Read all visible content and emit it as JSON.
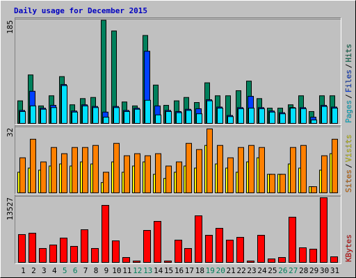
{
  "chart_data": [
    {
      "type": "bar",
      "title": "Daily usage for December 2015",
      "legend_separator": "/",
      "ylim": [
        0,
        185
      ],
      "yticks": [
        185
      ],
      "series": [
        {
          "name": "Hits",
          "color": "#00805c",
          "values": [
            40,
            86,
            31,
            49,
            83,
            33,
            44,
            46,
            183,
            164,
            38,
            31,
            156,
            68,
            32,
            40,
            46,
            37,
            72,
            49,
            49,
            58,
            75,
            44,
            27,
            27,
            33,
            49,
            21,
            49,
            49
          ]
        },
        {
          "name": "Files",
          "color": "#0040ff",
          "values": [
            23,
            57,
            27,
            32,
            69,
            22,
            33,
            30,
            20,
            30,
            23,
            27,
            128,
            31,
            23,
            21,
            25,
            26,
            42,
            29,
            14,
            28,
            48,
            28,
            22,
            19,
            28,
            28,
            11,
            32,
            29
          ]
        },
        {
          "name": "Pages",
          "color": "#00e0ff",
          "values": [
            21,
            31,
            25,
            28,
            67,
            20,
            31,
            28,
            11,
            28,
            21,
            25,
            41,
            15,
            21,
            19,
            23,
            17,
            40,
            27,
            12,
            26,
            27,
            26,
            20,
            17,
            27,
            26,
            6,
            30,
            27
          ]
        }
      ]
    },
    {
      "type": "bar",
      "legend_separator": "/",
      "ylim": [
        0,
        32
      ],
      "yticks": [
        32
      ],
      "series": [
        {
          "name": "Visits",
          "color": "#ffff00",
          "values": [
            10,
            12,
            11,
            13,
            14,
            13,
            15,
            14,
            5,
            15,
            10,
            13,
            15,
            9,
            7,
            10,
            13,
            12,
            23,
            14,
            12,
            10,
            15,
            17,
            9,
            9,
            14,
            12,
            3,
            11,
            19
          ]
        },
        {
          "name": "Sites",
          "color": "#ff8000",
          "values": [
            17,
            26,
            15,
            22,
            19,
            22,
            22,
            23,
            10,
            24,
            18,
            19,
            18,
            19,
            13,
            15,
            24,
            21,
            31,
            23,
            17,
            22,
            23,
            22,
            9,
            9,
            22,
            23,
            3,
            18,
            26
          ]
        }
      ]
    },
    {
      "type": "bar",
      "ylim": [
        0,
        13527
      ],
      "yticks": [
        13527
      ],
      "series": [
        {
          "name": "KBytes",
          "color": "#ff0000",
          "values": [
            5700,
            5980,
            2850,
            3560,
            4980,
            3280,
            6690,
            2850,
            11680,
            4410,
            1000,
            280,
            6550,
            8400,
            280,
            4560,
            2850,
            9540,
            5550,
            6980,
            4560,
            5130,
            280,
            5550,
            710,
            1000,
            9260,
            2990,
            2710,
            13240,
            1140
          ]
        }
      ],
      "categories": [
        "1",
        "2",
        "3",
        "4",
        "5",
        "6",
        "7",
        "8",
        "9",
        "10",
        "11",
        "12",
        "13",
        "14",
        "15",
        "16",
        "17",
        "18",
        "19",
        "20",
        "21",
        "22",
        "23",
        "24",
        "25",
        "26",
        "27",
        "28",
        "29",
        "30",
        "31"
      ],
      "category_colors": [
        "#000000",
        "#000000",
        "#000000",
        "#000000",
        "#00805c",
        "#00805c",
        "#000000",
        "#000000",
        "#000000",
        "#000000",
        "#000000",
        "#00805c",
        "#00805c",
        "#000000",
        "#000000",
        "#000000",
        "#000000",
        "#000000",
        "#00805c",
        "#00805c",
        "#000000",
        "#000000",
        "#000000",
        "#000000",
        "#000000",
        "#00805c",
        "#00805c",
        "#000000",
        "#000000",
        "#000000",
        "#000000"
      ]
    }
  ]
}
